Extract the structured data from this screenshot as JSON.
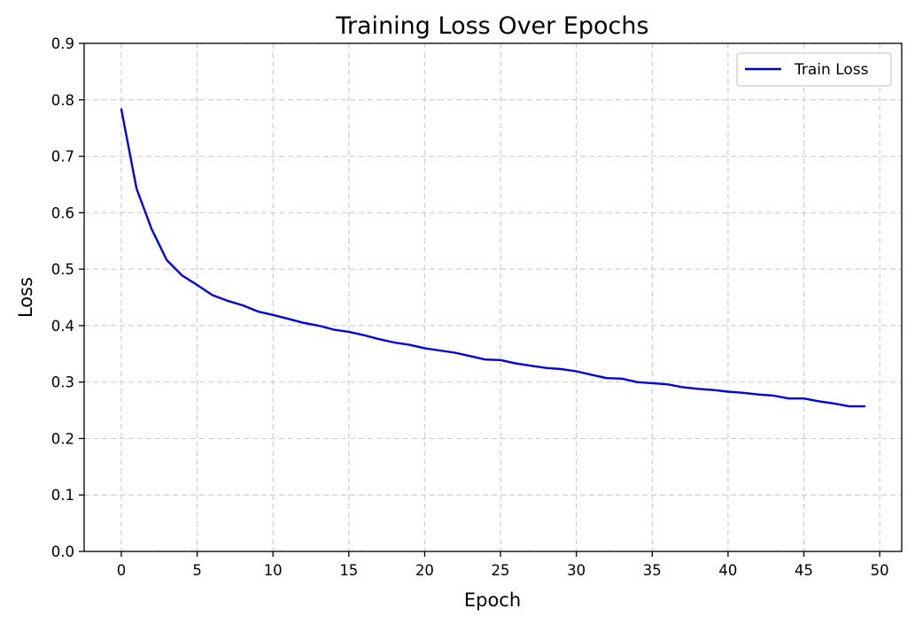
{
  "chart_data": {
    "type": "line",
    "title": "Training Loss Over Epochs",
    "xlabel": "Epoch",
    "ylabel": "Loss",
    "xlim": [
      -2.45,
      51.45
    ],
    "ylim": [
      0,
      0.9
    ],
    "xticks": [
      0,
      5,
      10,
      15,
      20,
      25,
      30,
      35,
      40,
      45,
      50
    ],
    "yticks": [
      0.0,
      0.1,
      0.2,
      0.3,
      0.4,
      0.5,
      0.6,
      0.7,
      0.8,
      0.9
    ],
    "xtick_labels": [
      "0",
      "5",
      "10",
      "15",
      "20",
      "25",
      "30",
      "35",
      "40",
      "45",
      "50"
    ],
    "ytick_labels": [
      "0.0",
      "0.1",
      "0.2",
      "0.3",
      "0.4",
      "0.5",
      "0.6",
      "0.7",
      "0.8",
      "0.9"
    ],
    "grid": true,
    "legend_position": "top-right",
    "series": [
      {
        "name": "Train Loss",
        "color": "#0000dd",
        "x": [
          0,
          1,
          2,
          3,
          4,
          5,
          6,
          7,
          8,
          9,
          10,
          11,
          12,
          13,
          14,
          15,
          16,
          17,
          18,
          19,
          20,
          21,
          22,
          23,
          24,
          25,
          26,
          27,
          28,
          29,
          30,
          31,
          32,
          33,
          34,
          35,
          36,
          37,
          38,
          39,
          40,
          41,
          42,
          43,
          44,
          45,
          46,
          47,
          48,
          49
        ],
        "values": [
          0.783,
          0.643,
          0.571,
          0.516,
          0.489,
          0.472,
          0.454,
          0.444,
          0.436,
          0.425,
          0.419,
          0.412,
          0.405,
          0.4,
          0.393,
          0.389,
          0.383,
          0.376,
          0.37,
          0.366,
          0.36,
          0.356,
          0.352,
          0.346,
          0.34,
          0.339,
          0.333,
          0.329,
          0.325,
          0.323,
          0.319,
          0.313,
          0.307,
          0.306,
          0.3,
          0.298,
          0.296,
          0.291,
          0.288,
          0.286,
          0.283,
          0.281,
          0.278,
          0.276,
          0.271,
          0.271,
          0.266,
          0.262,
          0.257,
          0.257
        ]
      }
    ]
  }
}
